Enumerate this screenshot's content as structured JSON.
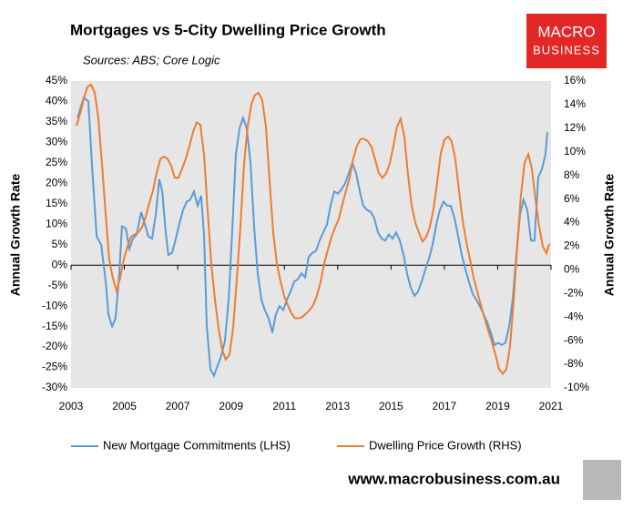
{
  "chart_data": {
    "type": "line",
    "title": "Mortgages vs 5-City Dwelling Price Growth",
    "subtitle": "Sources: ABS; Core Logic",
    "logo": [
      "MACRO",
      "BUSINESS"
    ],
    "website": "www.macrobusiness.com.au",
    "ylabel": "Annual Growth Rate",
    "y2label": "Annual Growth Rate",
    "xlim": [
      2003,
      2021
    ],
    "xticks": [
      2003,
      2005,
      2007,
      2009,
      2011,
      2013,
      2015,
      2017,
      2019,
      2021
    ],
    "ylim": [
      -30,
      45
    ],
    "yticks": [
      {
        "value": 45,
        "label": "45%"
      },
      {
        "value": 40,
        "label": "40%"
      },
      {
        "value": 35,
        "label": "35%"
      },
      {
        "value": 30,
        "label": "30%"
      },
      {
        "value": 25,
        "label": "25%"
      },
      {
        "value": 20,
        "label": "20%"
      },
      {
        "value": 15,
        "label": "15%"
      },
      {
        "value": 10,
        "label": "10%"
      },
      {
        "value": 5,
        "label": "5%"
      },
      {
        "value": 0,
        "label": "0%"
      },
      {
        "value": -5,
        "label": "-5%"
      },
      {
        "value": -10,
        "label": "-10%"
      },
      {
        "value": -15,
        "label": "-15%"
      },
      {
        "value": -20,
        "label": "-20%"
      },
      {
        "value": -25,
        "label": "-25%"
      },
      {
        "value": -30,
        "label": "-30%"
      }
    ],
    "y2lim": [
      -10,
      16
    ],
    "y2ticks": [
      {
        "value": 16,
        "label": "16%"
      },
      {
        "value": 14,
        "label": "14%"
      },
      {
        "value": 12,
        "label": "12%"
      },
      {
        "value": 10,
        "label": "10%"
      },
      {
        "value": 8,
        "label": "8%"
      },
      {
        "value": 6,
        "label": "6%"
      },
      {
        "value": 4,
        "label": "4%"
      },
      {
        "value": 2,
        "label": "2%"
      },
      {
        "value": 0,
        "label": "0%"
      },
      {
        "value": -2,
        "label": "-2%"
      },
      {
        "value": -4,
        "label": "-4%"
      },
      {
        "value": -6,
        "label": "-6%"
      },
      {
        "value": -8,
        "label": "-8%"
      },
      {
        "value": -10,
        "label": "-10%"
      }
    ],
    "legend": "bottom",
    "series": [
      {
        "name": "New Mortgage Commitments (LHS)",
        "color": "#5b9bd5",
        "x": [
          2003.24,
          2003.48,
          2003.65,
          2003.79,
          2003.96,
          2004.13,
          2004.3,
          2004.4,
          2004.54,
          2004.67,
          2004.81,
          2004.91,
          2005.05,
          2005.19,
          2005.32,
          2005.46,
          2005.63,
          2005.77,
          2005.9,
          2006.04,
          2006.18,
          2006.31,
          2006.42,
          2006.55,
          2006.65,
          2006.79,
          2006.93,
          2007.06,
          2007.2,
          2007.34,
          2007.47,
          2007.61,
          2007.75,
          2007.88,
          2007.99,
          2008.09,
          2008.23,
          2008.36,
          2008.5,
          2008.64,
          2008.77,
          2008.91,
          2009.05,
          2009.18,
          2009.32,
          2009.45,
          2009.59,
          2009.73,
          2009.87,
          2010.0,
          2010.14,
          2010.27,
          2010.41,
          2010.55,
          2010.68,
          2010.82,
          2010.96,
          2011.09,
          2011.23,
          2011.37,
          2011.5,
          2011.64,
          2011.78,
          2011.91,
          2012.05,
          2012.19,
          2012.32,
          2012.46,
          2012.6,
          2012.73,
          2012.87,
          2013.01,
          2013.14,
          2013.28,
          2013.42,
          2013.55,
          2013.69,
          2013.83,
          2013.96,
          2014.1,
          2014.24,
          2014.37,
          2014.51,
          2014.65,
          2014.78,
          2014.92,
          2015.06,
          2015.19,
          2015.33,
          2015.47,
          2015.6,
          2015.74,
          2015.88,
          2016.01,
          2016.15,
          2016.29,
          2016.42,
          2016.56,
          2016.7,
          2016.83,
          2016.97,
          2017.11,
          2017.24,
          2017.38,
          2017.52,
          2017.65,
          2017.79,
          2017.92,
          2018.06,
          2018.2,
          2018.33,
          2018.47,
          2018.61,
          2018.74,
          2018.88,
          2019.02,
          2019.15,
          2019.29,
          2019.43,
          2019.56,
          2019.7,
          2019.84,
          2019.97,
          2020.11,
          2020.25,
          2020.38,
          2020.52,
          2020.66,
          2020.79,
          2020.86
        ],
        "values": [
          36,
          41,
          40,
          24,
          7,
          5,
          -4,
          -12,
          -15,
          -13,
          -2,
          9.5,
          9,
          4,
          6.5,
          7.5,
          13,
          10,
          7,
          6.5,
          12.5,
          21,
          18,
          8,
          2.5,
          3,
          6.5,
          10,
          13.5,
          15.5,
          16,
          18,
          14.5,
          17,
          7,
          -15,
          -25.5,
          -27,
          -24.5,
          -22,
          -18.5,
          -8.5,
          9,
          27,
          33.5,
          36,
          33.5,
          25,
          9,
          -2,
          -8.5,
          -11,
          -13,
          -16.5,
          -12,
          -10,
          -11,
          -8.5,
          -6.5,
          -4,
          -3.5,
          -2,
          -3,
          2,
          3,
          3.5,
          6,
          8,
          10,
          14.5,
          18,
          17.5,
          18.5,
          20,
          22.5,
          25,
          22.5,
          18,
          14.5,
          13.5,
          13,
          11.5,
          8,
          6.5,
          6,
          7.5,
          6.5,
          8,
          6,
          2.5,
          -2,
          -5.5,
          -7.5,
          -6.5,
          -4,
          -1,
          1.5,
          5,
          10,
          13.5,
          15.5,
          14.5,
          14.5,
          11.5,
          7,
          2.5,
          -1,
          -4,
          -7,
          -8.5,
          -10,
          -12,
          -14,
          -16.5,
          -19.5,
          -19,
          -19.5,
          -19,
          -15,
          -8.5,
          2.5,
          12.5,
          16,
          13.5,
          6,
          6,
          21.5,
          23.5,
          27,
          32.5
        ]
      },
      {
        "name": "Dwelling Price Growth (RHS)",
        "color": "#ed7d31",
        "axis": "y2",
        "x": [
          2003.2,
          2003.34,
          2003.48,
          2003.61,
          2003.75,
          2003.89,
          2004.02,
          2004.16,
          2004.3,
          2004.43,
          2004.57,
          2004.71,
          2004.84,
          2004.98,
          2005.12,
          2005.25,
          2005.39,
          2005.53,
          2005.66,
          2005.8,
          2005.94,
          2006.07,
          2006.21,
          2006.35,
          2006.48,
          2006.62,
          2006.76,
          2006.89,
          2007.03,
          2007.17,
          2007.3,
          2007.44,
          2007.58,
          2007.71,
          2007.85,
          2007.99,
          2008.12,
          2008.26,
          2008.4,
          2008.53,
          2008.67,
          2008.8,
          2008.94,
          2009.08,
          2009.21,
          2009.35,
          2009.49,
          2009.62,
          2009.76,
          2009.89,
          2010.03,
          2010.17,
          2010.31,
          2010.45,
          2010.58,
          2010.72,
          2010.86,
          2010.99,
          2011.13,
          2011.27,
          2011.4,
          2011.54,
          2011.67,
          2011.81,
          2011.95,
          2012.08,
          2012.22,
          2012.36,
          2012.49,
          2012.63,
          2012.77,
          2012.9,
          2013.04,
          2013.17,
          2013.31,
          2013.45,
          2013.58,
          2013.72,
          2013.86,
          2013.99,
          2014.13,
          2014.27,
          2014.4,
          2014.54,
          2014.68,
          2014.82,
          2014.95,
          2015.09,
          2015.22,
          2015.36,
          2015.5,
          2015.63,
          2015.77,
          2015.91,
          2016.04,
          2016.18,
          2016.32,
          2016.45,
          2016.59,
          2016.73,
          2016.86,
          2017.0,
          2017.14,
          2017.27,
          2017.41,
          2017.55,
          2017.68,
          2017.82,
          2017.96,
          2018.1,
          2018.23,
          2018.37,
          2018.51,
          2018.64,
          2018.78,
          2018.92,
          2019.05,
          2019.19,
          2019.33,
          2019.46,
          2019.6,
          2019.73,
          2019.87,
          2020.01,
          2020.15,
          2020.28,
          2020.42,
          2020.56,
          2020.69,
          2020.83,
          2020.93
        ],
        "values": [
          12.2,
          13.2,
          14.5,
          15.5,
          15.7,
          15,
          12.9,
          9,
          4.7,
          0.9,
          -0.7,
          -1.8,
          -0.7,
          0.9,
          2,
          2.8,
          3,
          3.2,
          3.6,
          4.5,
          5.7,
          6.7,
          8.2,
          9.4,
          9.6,
          9.4,
          8.8,
          7.8,
          7.8,
          8.6,
          9.4,
          10.5,
          11.7,
          12.5,
          12.3,
          9.7,
          5.1,
          0.5,
          -2.6,
          -4.9,
          -6.8,
          -7.6,
          -7.2,
          -4.9,
          -1,
          3.6,
          9,
          12.1,
          14,
          14.8,
          15,
          14.4,
          12.1,
          7.4,
          3.2,
          0.5,
          -1,
          -2.2,
          -3,
          -3.7,
          -4.1,
          -4.1,
          -4,
          -3.7,
          -3.4,
          -3,
          -2.2,
          -1,
          0.5,
          1.7,
          2.8,
          3.6,
          4.3,
          5.5,
          6.7,
          7.8,
          9.4,
          10.5,
          11.1,
          11.1,
          10.9,
          10.4,
          9.4,
          8.2,
          7.8,
          8.2,
          9,
          10.5,
          12.1,
          12.8,
          11.3,
          8.2,
          5.5,
          4,
          3.2,
          2.4,
          2.8,
          3.6,
          5.1,
          7.4,
          9.8,
          11,
          11.3,
          10.9,
          9.4,
          6.7,
          4.3,
          2.4,
          0.9,
          -0.7,
          -1.8,
          -3,
          -4.1,
          -5.1,
          -6.1,
          -7.2,
          -8.4,
          -8.8,
          -8.4,
          -6.5,
          -2.6,
          2,
          6.3,
          9.1,
          9.8,
          8.6,
          5.9,
          3.6,
          2,
          1.4,
          2.2
        ]
      }
    ]
  }
}
